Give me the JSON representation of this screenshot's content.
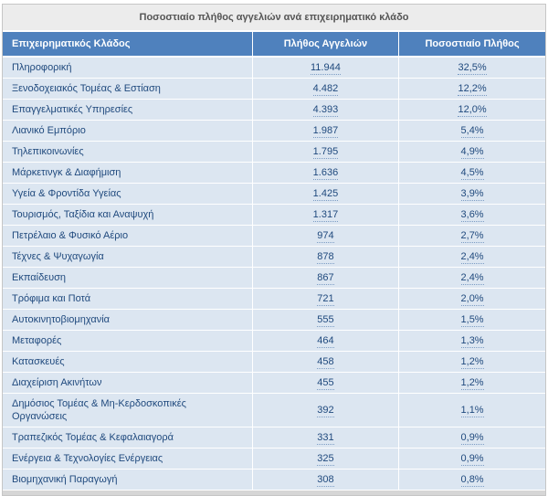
{
  "chart_data": {
    "type": "table",
    "title": "Ποσοστιαίο πλήθος αγγελιών ανά επιχειρηματικό κλάδο",
    "columns": [
      "Επιχειρηματικός Κλάδος",
      "Πλήθος Αγγελιών",
      "Ποσοστιαίο Πλήθος"
    ],
    "rows": [
      {
        "sector": "Πληροφορική",
        "count": "11.944",
        "percent": "32,5%",
        "count_value": 11944,
        "percent_value": 32.5
      },
      {
        "sector": "Ξενοδοχειακός Τομέας & Εστίαση",
        "count": "4.482",
        "percent": "12,2%",
        "count_value": 4482,
        "percent_value": 12.2
      },
      {
        "sector": "Επαγγελματικές Υπηρεσίες",
        "count": "4.393",
        "percent": "12,0%",
        "count_value": 4393,
        "percent_value": 12.0
      },
      {
        "sector": "Λιανικό Εμπόριο",
        "count": "1.987",
        "percent": "5,4%",
        "count_value": 1987,
        "percent_value": 5.4
      },
      {
        "sector": "Τηλεπικοινωνίες",
        "count": "1.795",
        "percent": "4,9%",
        "count_value": 1795,
        "percent_value": 4.9
      },
      {
        "sector": "Μάρκετινγκ & Διαφήμιση",
        "count": "1.636",
        "percent": "4,5%",
        "count_value": 1636,
        "percent_value": 4.5
      },
      {
        "sector": "Υγεία & Φροντίδα Υγείας",
        "count": "1.425",
        "percent": "3,9%",
        "count_value": 1425,
        "percent_value": 3.9
      },
      {
        "sector": "Τουρισμός, Ταξίδια και Αναψυχή",
        "count": "1.317",
        "percent": "3,6%",
        "count_value": 1317,
        "percent_value": 3.6
      },
      {
        "sector": "Πετρέλαιο & Φυσικό Αέριο",
        "count": "974",
        "percent": "2,7%",
        "count_value": 974,
        "percent_value": 2.7
      },
      {
        "sector": "Τέχνες & Ψυχαγωγία",
        "count": "878",
        "percent": "2,4%",
        "count_value": 878,
        "percent_value": 2.4
      },
      {
        "sector": "Εκπαίδευση",
        "count": "867",
        "percent": "2,4%",
        "count_value": 867,
        "percent_value": 2.4
      },
      {
        "sector": "Τρόφιμα και Ποτά",
        "count": "721",
        "percent": "2,0%",
        "count_value": 721,
        "percent_value": 2.0
      },
      {
        "sector": "Αυτοκινητοβιομηχανία",
        "count": "555",
        "percent": "1,5%",
        "count_value": 555,
        "percent_value": 1.5
      },
      {
        "sector": "Μεταφορές",
        "count": "464",
        "percent": "1,3%",
        "count_value": 464,
        "percent_value": 1.3
      },
      {
        "sector": "Κατασκευές",
        "count": "458",
        "percent": "1,2%",
        "count_value": 458,
        "percent_value": 1.2
      },
      {
        "sector": "Διαχείριση Ακινήτων",
        "count": "455",
        "percent": "1,2%",
        "count_value": 455,
        "percent_value": 1.2
      },
      {
        "sector": "Δημόσιος Τομέας & Μη-Κερδοσκοπικές Οργανώσεις",
        "count": "392",
        "percent": "1,1%",
        "count_value": 392,
        "percent_value": 1.1
      },
      {
        "sector": "Τραπεζικός Τομέας & Κεφαλαιαγορά",
        "count": "331",
        "percent": "0,9%",
        "count_value": 331,
        "percent_value": 0.9
      },
      {
        "sector": "Ενέργεια & Τεχνολογίες Ενέργειας",
        "count": "325",
        "percent": "0,9%",
        "count_value": 325,
        "percent_value": 0.9
      },
      {
        "sector": "Βιομηχανική Παραγωγή",
        "count": "308",
        "percent": "0,8%",
        "count_value": 308,
        "percent_value": 0.8
      }
    ],
    "layout": {
      "legend": "none",
      "grid": "row-separators-white"
    }
  },
  "colors": {
    "header_bg": "#4f81bd",
    "header_text": "#ffffff",
    "row_bg": "#dce6f1",
    "row_text": "#1f497d",
    "title_bg": "#ececec",
    "title_text": "#555555",
    "separator": "#ffffff",
    "outer_border": "#c6c6c6",
    "bottom_strip": "#d6d6d6"
  }
}
